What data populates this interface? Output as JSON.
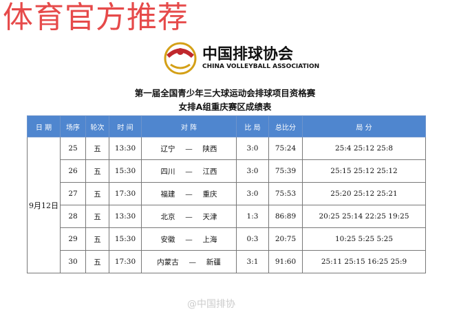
{
  "watermark": "体育官方推荐",
  "logo": {
    "cn": "中国排球协会",
    "en": "CHINA VOLLEYBALL ASSOCIATION"
  },
  "title1": "第一届全国青少年三大球运动会排球项目资格赛",
  "title2": "女排A组重庆赛区成绩表",
  "headers": [
    "日 期",
    "场序",
    "轮次",
    "时 间",
    "对  阵",
    "比 局",
    "总比分",
    "局  分"
  ],
  "date": "9月12日",
  "dash": "—",
  "rows": [
    {
      "no": "25",
      "round": "五",
      "time": "13:30",
      "home": "辽宁",
      "away": "陕西",
      "sets": "3:0",
      "total": "75:24",
      "scores": "25:4 25:12 25:8"
    },
    {
      "no": "26",
      "round": "五",
      "time": "15:30",
      "home": "四川",
      "away": "江西",
      "sets": "3:0",
      "total": "75:39",
      "scores": "25:15 25:12 25:12"
    },
    {
      "no": "27",
      "round": "五",
      "time": "17:30",
      "home": "福建",
      "away": "重庆",
      "sets": "3:0",
      "total": "75:53",
      "scores": "25:20 25:12 25:21"
    },
    {
      "no": "28",
      "round": "五",
      "time": "13:30",
      "home": "北京",
      "away": "天津",
      "sets": "1:3",
      "total": "86:89",
      "scores": "20:25 25:14 22:25 19:25"
    },
    {
      "no": "29",
      "round": "五",
      "time": "15:30",
      "home": "安徽",
      "away": "上海",
      "sets": "0:3",
      "total": "20:75",
      "scores": "10:25 5:25 5:25"
    },
    {
      "no": "30",
      "round": "五",
      "time": "17:30",
      "home": "内蒙古",
      "away": "新疆",
      "sets": "3:1",
      "total": "91:60",
      "scores": "25:11 25:15 16:25 25:9"
    }
  ],
  "footer": "@中国排协"
}
